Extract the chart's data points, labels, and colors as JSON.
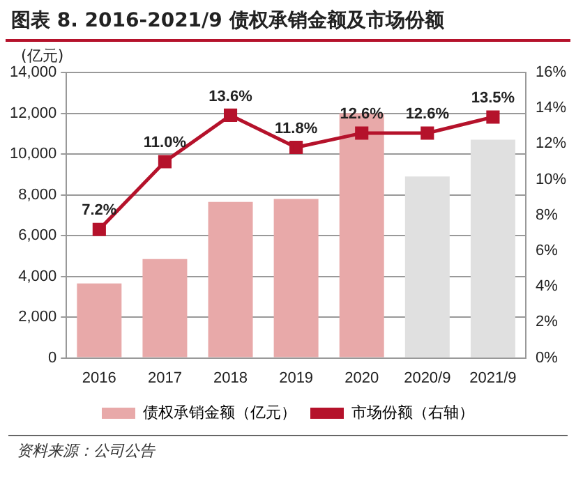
{
  "chart_data": {
    "type": "bar",
    "title": "图表 8. 2016-2021/9 债权承销金额及市场份额",
    "ylabel": "(亿元)",
    "categories": [
      "2016",
      "2017",
      "2018",
      "2019",
      "2020",
      "2020/9",
      "2021/9"
    ],
    "series": [
      {
        "name": "债权承销金额（亿元）",
        "colors": [
          "#e8a9a9",
          "#e8a9a9",
          "#e8a9a9",
          "#e8a9a9",
          "#e8a9a9",
          "#e0e0e0",
          "#e0e0e0"
        ],
        "color": "#e8a9a9",
        "values": [
          3650,
          4850,
          7650,
          7800,
          12000,
          8900,
          10700
        ]
      },
      {
        "name": "市场份额（右轴）",
        "type": "line",
        "axis": "y2",
        "color": "#b5122b",
        "marker": "square",
        "values": [
          7.2,
          11.0,
          13.6,
          11.8,
          12.6,
          12.6,
          13.5
        ],
        "value_labels": [
          "7.2%",
          "11.0%",
          "13.6%",
          "11.8%",
          "12.6%",
          "12.6%",
          "13.5%"
        ]
      }
    ],
    "ylim": [
      0,
      14000
    ],
    "yticks": [
      {
        "value": 0,
        "label": "0"
      },
      {
        "value": 2000,
        "label": "2,000"
      },
      {
        "value": 4000,
        "label": "4,000"
      },
      {
        "value": 6000,
        "label": "6,000"
      },
      {
        "value": 8000,
        "label": "8,000"
      },
      {
        "value": 10000,
        "label": "10,000"
      },
      {
        "value": 12000,
        "label": "12,000"
      },
      {
        "value": 14000,
        "label": "14,000"
      }
    ],
    "y2lim": [
      0,
      16
    ],
    "y2ticks": [
      {
        "value": 0,
        "label": "0%"
      },
      {
        "value": 2,
        "label": "2%"
      },
      {
        "value": 4,
        "label": "4%"
      },
      {
        "value": 6,
        "label": "6%"
      },
      {
        "value": 8,
        "label": "8%"
      },
      {
        "value": 10,
        "label": "10%"
      },
      {
        "value": 12,
        "label": "12%"
      },
      {
        "value": 14,
        "label": "14%"
      },
      {
        "value": 16,
        "label": "16%"
      }
    ],
    "grid": "y",
    "legend": "bottom",
    "annotations": [
      "资料来源：公司公告"
    ]
  }
}
